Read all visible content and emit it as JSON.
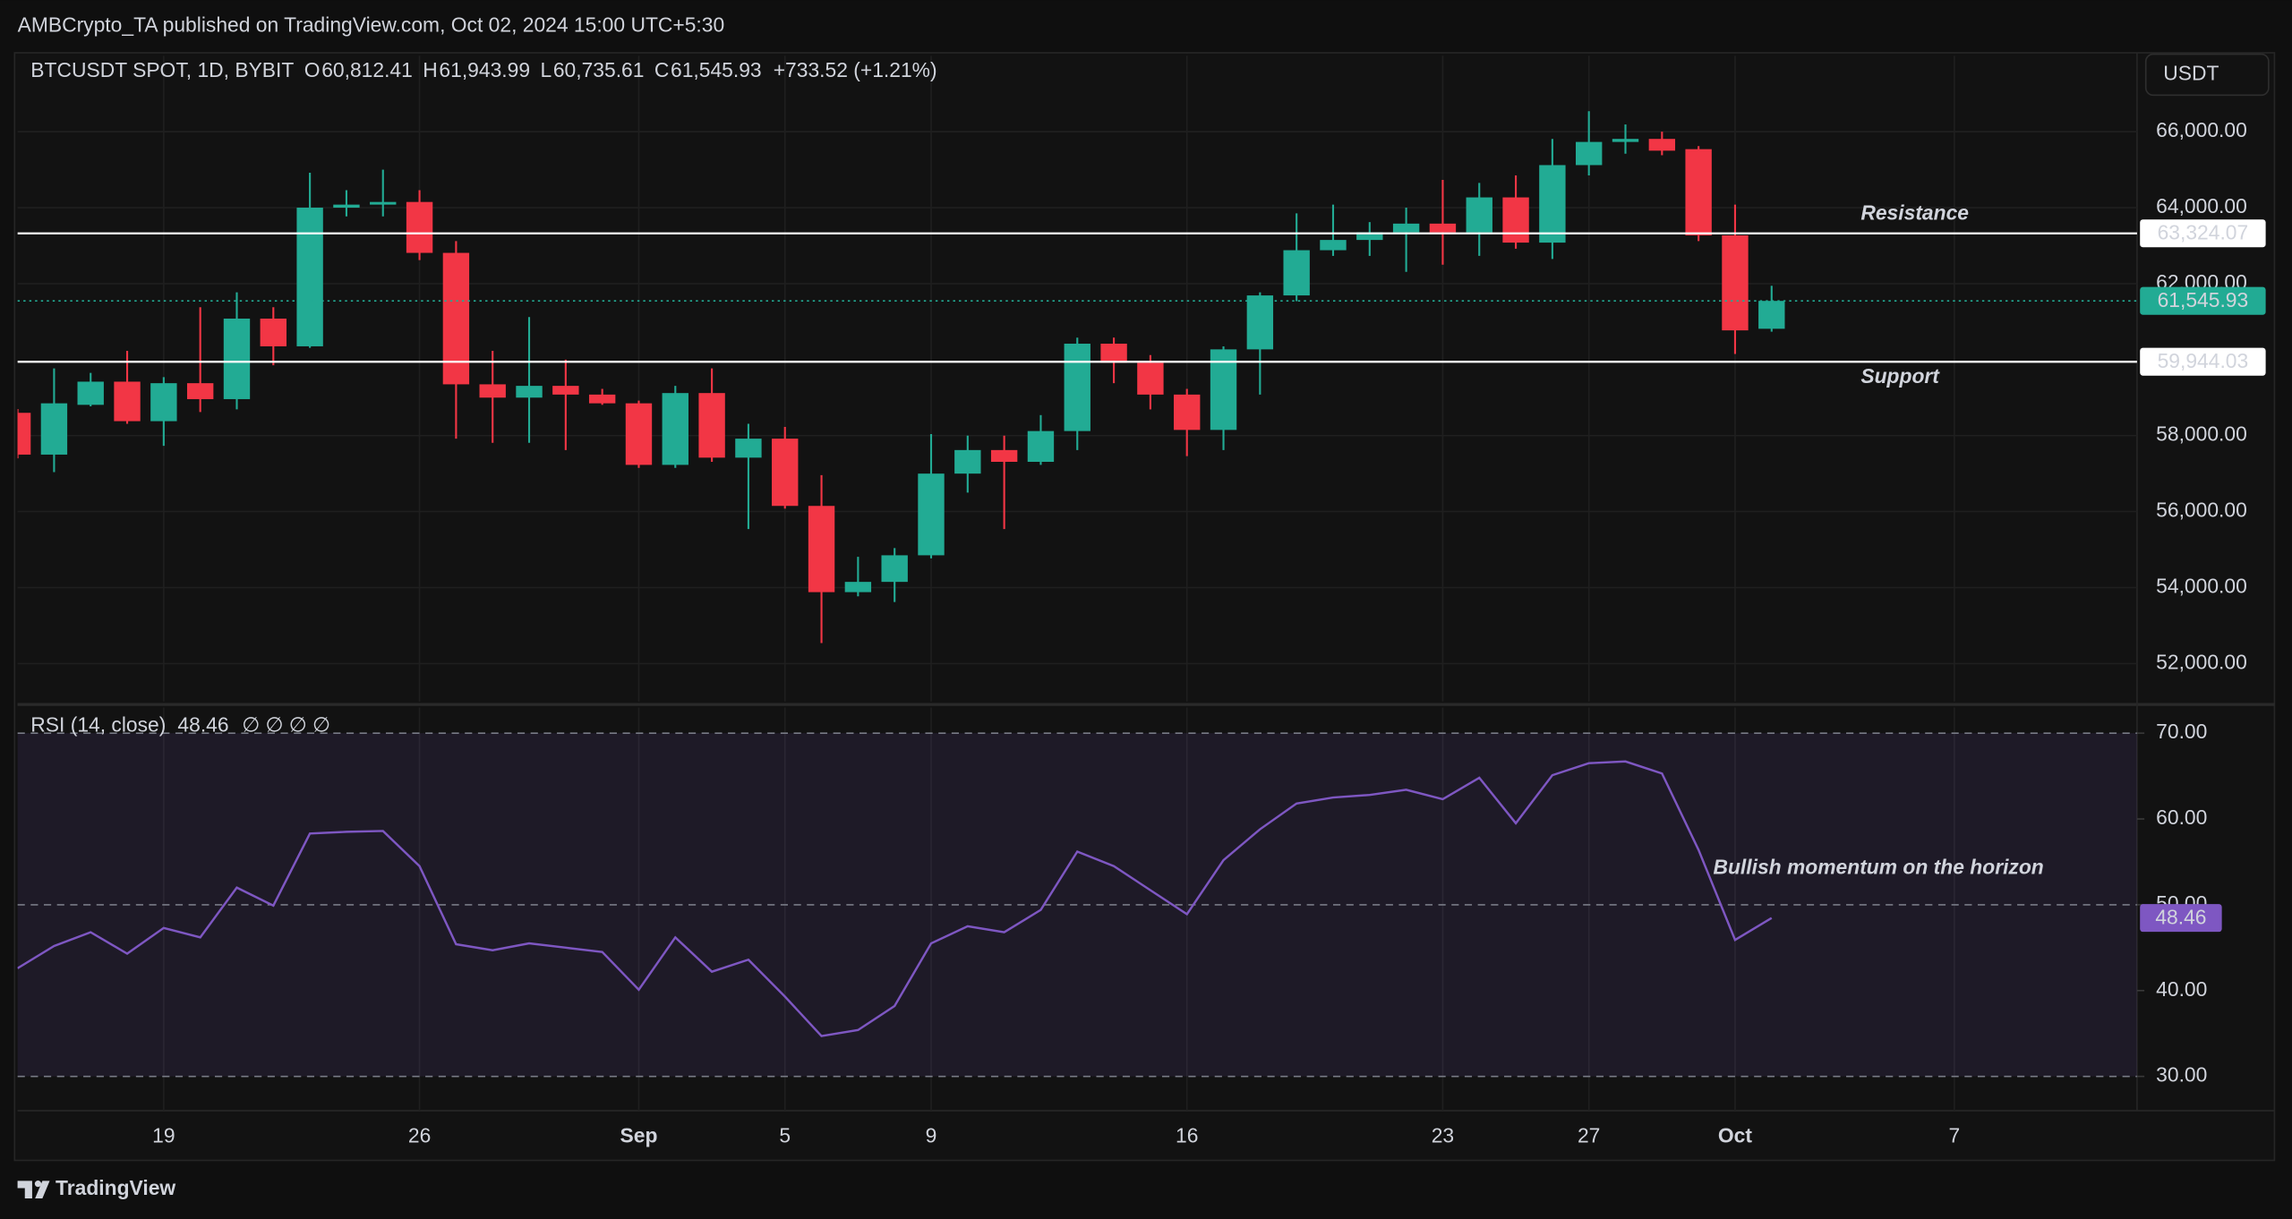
{
  "page": {
    "caption": "AMBCrypto_TA published on TradingView.com, Oct 02, 2024 15:00 UTC+5:30",
    "brand": "TradingView",
    "currency_button": "USDT"
  },
  "chart_data": [
    {
      "type": "candlestick",
      "symbol": "BTCUSDT SPOT, 1D, BYBIT",
      "ohlc_labels": [
        {
          "key": "O",
          "value": "60,812.41"
        },
        {
          "key": "H",
          "value": "61,943.99"
        },
        {
          "key": "L",
          "value": "60,735.61"
        },
        {
          "key": "C",
          "value": "61,545.93"
        }
      ],
      "change": "+733.52 (+1.21%)",
      "header_color": "#22ab94",
      "up_color": "#22ab94",
      "down_color": "#f23645",
      "x": [
        "2024-08-15",
        "2024-08-16",
        "2024-08-17",
        "2024-08-18",
        "2024-08-19",
        "2024-08-20",
        "2024-08-21",
        "2024-08-22",
        "2024-08-23",
        "2024-08-24",
        "2024-08-25",
        "2024-08-26",
        "2024-08-27",
        "2024-08-28",
        "2024-08-29",
        "2024-08-30",
        "2024-08-31",
        "2024-09-01",
        "2024-09-02",
        "2024-09-03",
        "2024-09-04",
        "2024-09-05",
        "2024-09-06",
        "2024-09-07",
        "2024-09-08",
        "2024-09-09",
        "2024-09-10",
        "2024-09-11",
        "2024-09-12",
        "2024-09-13",
        "2024-09-14",
        "2024-09-15",
        "2024-09-16",
        "2024-09-17",
        "2024-09-18",
        "2024-09-19",
        "2024-09-20",
        "2024-09-21",
        "2024-09-22",
        "2024-09-23",
        "2024-09-24",
        "2024-09-25",
        "2024-09-26",
        "2024-09-27",
        "2024-09-28",
        "2024-09-29",
        "2024-09-30",
        "2024-10-01",
        "2024-10-02"
      ],
      "open": [
        58600,
        57500,
        58810,
        59420,
        58380,
        59380,
        58960,
        61080,
        60350,
        64000,
        64080,
        64150,
        62810,
        59350,
        59000,
        59310,
        59080,
        58850,
        57230,
        59120,
        57420,
        57920,
        56150,
        53880,
        54150,
        54850,
        57000,
        57620,
        57310,
        58120,
        60420,
        59920,
        59080,
        58150,
        60270,
        61690,
        62880,
        63150,
        63350,
        63580,
        63350,
        64270,
        63080,
        65120,
        65730,
        65810,
        65540,
        63270,
        60812.41
      ],
      "high": [
        58700,
        59770,
        59650,
        60230,
        59540,
        61380,
        61770,
        61380,
        64920,
        64460,
        65000,
        64460,
        63120,
        60230,
        61120,
        60000,
        59230,
        58920,
        59310,
        59770,
        58310,
        58230,
        56960,
        54810,
        55040,
        58040,
        58000,
        58000,
        58540,
        60580,
        60580,
        60120,
        59230,
        60350,
        61770,
        63850,
        64080,
        63620,
        64000,
        64730,
        64650,
        64850,
        65810,
        66540,
        66190,
        66000,
        65620,
        64080,
        61943.99
      ],
      "low": [
        57400,
        57040,
        58770,
        58310,
        57730,
        58620,
        58690,
        59850,
        60310,
        63770,
        63770,
        62620,
        57920,
        57810,
        57810,
        57620,
        58810,
        57150,
        57150,
        57310,
        55540,
        56080,
        52540,
        53770,
        53620,
        54770,
        56500,
        55540,
        57230,
        57620,
        59380,
        58690,
        57460,
        57620,
        59080,
        61540,
        62730,
        62730,
        62310,
        62500,
        62730,
        62920,
        62650,
        64850,
        65420,
        65380,
        63120,
        60150,
        60735.61
      ],
      "close": [
        57500,
        58850,
        59420,
        58380,
        59380,
        58960,
        61080,
        60350,
        64000,
        64080,
        64150,
        62810,
        59350,
        59000,
        59310,
        59080,
        58850,
        57230,
        59120,
        57420,
        57920,
        56150,
        53880,
        54150,
        54850,
        57000,
        57620,
        57310,
        58120,
        60420,
        59920,
        59080,
        58150,
        60270,
        61690,
        62880,
        63150,
        63350,
        63580,
        63350,
        64270,
        63080,
        65120,
        65730,
        65810,
        65500,
        63270,
        60770,
        61545.93
      ],
      "xlim": [
        "2024-08-15",
        "2024-10-12"
      ],
      "ylim": [
        51000,
        68000
      ],
      "yticks": [
        {
          "value": 52000,
          "label": "52,000.00"
        },
        {
          "value": 54000,
          "label": "54,000.00"
        },
        {
          "value": 56000,
          "label": "56,000.00"
        },
        {
          "value": 58000,
          "label": "58,000.00"
        },
        {
          "value": 62000,
          "label": "62,000.00"
        },
        {
          "value": 64000,
          "label": "64,000.00"
        },
        {
          "value": 66000,
          "label": "66,000.00"
        }
      ],
      "levels": [
        {
          "value": 63324.07,
          "label": "63,324.07",
          "annotation": "Resistance",
          "color": "#ffffff",
          "style": "solid"
        },
        {
          "value": 59944.03,
          "label": "59,944.03",
          "annotation": "Support",
          "color": "#ffffff",
          "style": "solid"
        },
        {
          "value": 61545.93,
          "label": "61,545.93",
          "color": "#22ab94",
          "style": "dotted"
        }
      ],
      "grid": true
    },
    {
      "type": "line",
      "title": "RSI (14, close)",
      "na_marks": "∅ ∅ ∅ ∅",
      "annotation": "Bullish momentum on the horizon",
      "x": [
        "2024-08-15",
        "2024-08-16",
        "2024-08-17",
        "2024-08-18",
        "2024-08-19",
        "2024-08-20",
        "2024-08-21",
        "2024-08-22",
        "2024-08-23",
        "2024-08-24",
        "2024-08-25",
        "2024-08-26",
        "2024-08-27",
        "2024-08-28",
        "2024-08-29",
        "2024-08-30",
        "2024-08-31",
        "2024-09-01",
        "2024-09-02",
        "2024-09-03",
        "2024-09-04",
        "2024-09-05",
        "2024-09-06",
        "2024-09-07",
        "2024-09-08",
        "2024-09-09",
        "2024-09-10",
        "2024-09-11",
        "2024-09-12",
        "2024-09-13",
        "2024-09-14",
        "2024-09-15",
        "2024-09-16",
        "2024-09-17",
        "2024-09-18",
        "2024-09-19",
        "2024-09-20",
        "2024-09-21",
        "2024-09-22",
        "2024-09-23",
        "2024-09-24",
        "2024-09-25",
        "2024-09-26",
        "2024-09-27",
        "2024-09-28",
        "2024-09-29",
        "2024-09-30",
        "2024-10-01",
        "2024-10-02"
      ],
      "series": [
        {
          "name": "RSI",
          "color": "#7e57c2",
          "values": [
            42.6,
            45.2,
            46.8,
            44.3,
            47.3,
            46.2,
            52.0,
            49.9,
            58.3,
            58.5,
            58.6,
            54.5,
            45.4,
            44.7,
            45.5,
            45.0,
            44.5,
            40.1,
            46.2,
            42.2,
            43.6,
            39.3,
            34.7,
            35.4,
            38.2,
            45.5,
            47.5,
            46.8,
            49.4,
            56.2,
            54.5,
            51.7,
            48.9,
            55.2,
            58.8,
            61.8,
            62.5,
            62.8,
            63.4,
            62.3,
            64.8,
            59.5,
            65.1,
            66.5,
            66.7,
            65.3,
            56.4,
            45.9,
            48.46
          ]
        }
      ],
      "band": [
        30,
        70
      ],
      "midline": 50,
      "xlim": [
        "2024-08-15",
        "2024-10-12"
      ],
      "ylim": [
        26,
        73
      ],
      "yticks": [
        {
          "value": 30,
          "label": "30.00"
        },
        {
          "value": 40,
          "label": "40.00"
        },
        {
          "value": 50,
          "label": "50.00"
        },
        {
          "value": 60,
          "label": "60.00"
        },
        {
          "value": 70,
          "label": "70.00"
        }
      ],
      "xticks": [
        {
          "value": "2024-08-19",
          "label": "19"
        },
        {
          "value": "2024-08-26",
          "label": "26"
        },
        {
          "value": "2024-09-01",
          "label": "Sep"
        },
        {
          "value": "2024-09-05",
          "label": "5"
        },
        {
          "value": "2024-09-09",
          "label": "9"
        },
        {
          "value": "2024-09-16",
          "label": "16"
        },
        {
          "value": "2024-09-23",
          "label": "23"
        },
        {
          "value": "2024-09-27",
          "label": "27"
        },
        {
          "value": "2024-10-01",
          "label": "Oct"
        },
        {
          "value": "2024-10-07",
          "label": "7"
        }
      ],
      "grid": true
    }
  ]
}
